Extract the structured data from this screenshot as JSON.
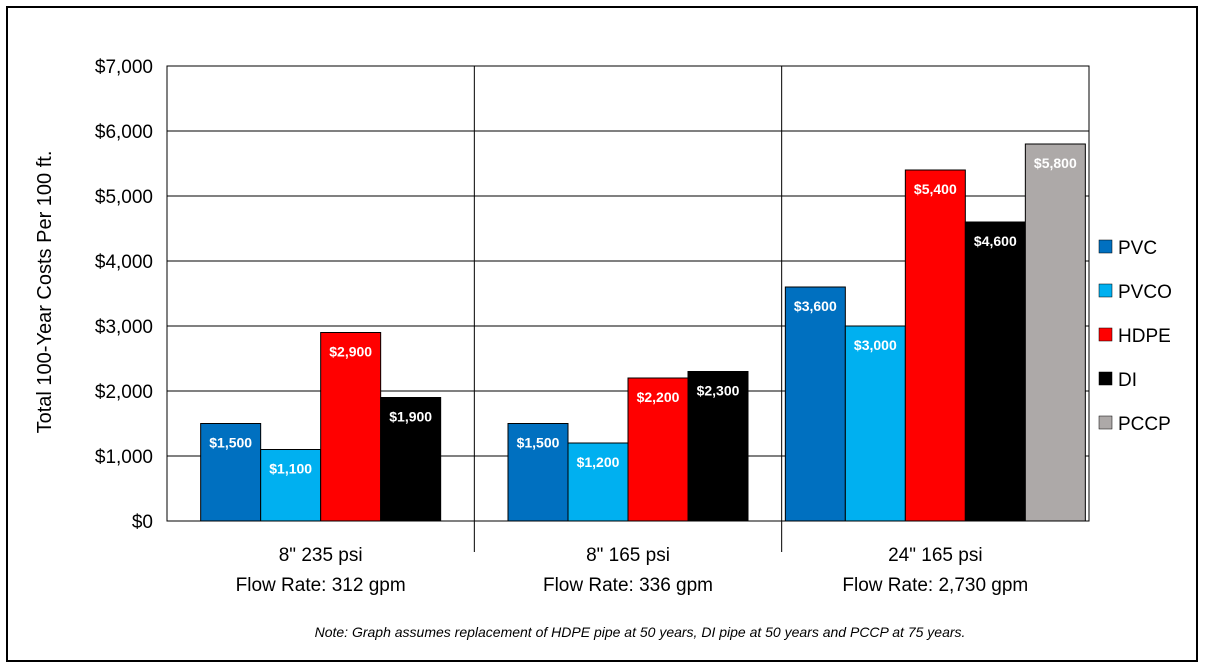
{
  "chart_data": {
    "type": "bar",
    "ylabel": "Total 100-Year Costs Per 100 ft.",
    "ylim": [
      0,
      7000
    ],
    "yticks": [
      0,
      1000,
      2000,
      3000,
      4000,
      5000,
      6000,
      7000
    ],
    "ytick_labels": [
      "$0",
      "$1,000",
      "$2,000",
      "$3,000",
      "$4,000",
      "$5,000",
      "$6,000",
      "$7,000"
    ],
    "grid": true,
    "legend_position": "right",
    "categories": [
      {
        "line1": "8\" 235 psi",
        "line2": "Flow Rate: 312 gpm"
      },
      {
        "line1": "8\" 165 psi",
        "line2": "Flow Rate: 336 gpm"
      },
      {
        "line1": "24\" 165 psi",
        "line2": "Flow Rate: 2,730 gpm"
      }
    ],
    "series": [
      {
        "name": "PVC",
        "color": "#0070C0",
        "label_color": "#FFFFFF",
        "values": [
          1500,
          1500,
          3600
        ],
        "labels": [
          "$1,500",
          "$1,500",
          "$3,600"
        ]
      },
      {
        "name": "PVCO",
        "color": "#00B0F0",
        "label_color": "#FFFFFF",
        "values": [
          1100,
          1200,
          3000
        ],
        "labels": [
          "$1,100",
          "$1,200",
          "$3,000"
        ]
      },
      {
        "name": "HDPE",
        "color": "#FF0000",
        "label_color": "#FFFFFF",
        "values": [
          2900,
          2200,
          5400
        ],
        "labels": [
          "$2,900",
          "$2,200",
          "$5,400"
        ]
      },
      {
        "name": "DI",
        "color": "#000000",
        "label_color": "#FFFFFF",
        "values": [
          1900,
          2300,
          4600
        ],
        "labels": [
          "$1,900",
          "$2,300",
          "$4,600"
        ]
      },
      {
        "name": "PCCP",
        "color": "#ADA9A8",
        "label_color": "#FFFFFF",
        "values": [
          null,
          null,
          5800
        ],
        "labels": [
          null,
          null,
          "$5,800"
        ]
      }
    ],
    "note": "Note: Graph assumes replacement of HDPE pipe at 50 years, DI pipe at 50 years and PCCP at 75 years."
  }
}
